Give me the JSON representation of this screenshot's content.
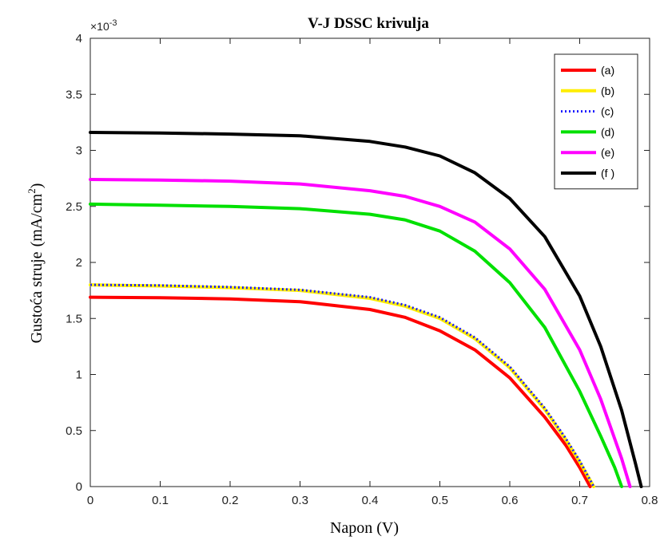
{
  "chart_data": {
    "type": "line",
    "title": "V-J DSSC krivulja",
    "xlabel": "Napon (V)",
    "ylabel": "Gustoća struje",
    "ylabel_unit": "(mA/cm",
    "ylabel_unit_sup": "2",
    "ylabel_unit_close": ")",
    "y_exponent": "-3",
    "y_exponent_base": "×10",
    "xlim": [
      0,
      0.8
    ],
    "ylim": [
      0,
      4
    ],
    "x_ticks": [
      "0",
      "0.1",
      "0.2",
      "0.3",
      "0.4",
      "0.5",
      "0.6",
      "0.7",
      "0.8"
    ],
    "y_ticks": [
      "0",
      "0.5",
      "1",
      "1.5",
      "2",
      "2.5",
      "3",
      "3.5",
      "4"
    ],
    "x_tick_values": [
      0,
      0.1,
      0.2,
      0.3,
      0.4,
      0.5,
      0.6,
      0.7,
      0.8
    ],
    "y_tick_values": [
      0,
      0.5,
      1,
      1.5,
      2,
      2.5,
      3,
      3.5,
      4
    ],
    "grid": false,
    "legend_position": "top-right",
    "series": [
      {
        "name": "(a)",
        "color": "#ff0000",
        "style": "solid",
        "x": [
          0,
          0.1,
          0.2,
          0.3,
          0.4,
          0.45,
          0.5,
          0.55,
          0.6,
          0.65,
          0.68,
          0.7,
          0.715
        ],
        "y": [
          1.69,
          1.685,
          1.675,
          1.65,
          1.58,
          1.51,
          1.39,
          1.22,
          0.97,
          0.62,
          0.37,
          0.17,
          0
        ]
      },
      {
        "name": "(b)",
        "color": "#ffee00",
        "style": "solid",
        "x": [
          0,
          0.1,
          0.2,
          0.3,
          0.4,
          0.45,
          0.5,
          0.55,
          0.6,
          0.65,
          0.68,
          0.7,
          0.72
        ],
        "y": [
          1.8,
          1.79,
          1.775,
          1.75,
          1.68,
          1.61,
          1.5,
          1.32,
          1.06,
          0.69,
          0.42,
          0.22,
          0
        ]
      },
      {
        "name": "(c)",
        "color": "#1a1aff",
        "style": "dotted",
        "x": [
          0,
          0.1,
          0.2,
          0.3,
          0.4,
          0.45,
          0.5,
          0.55,
          0.6,
          0.65,
          0.68,
          0.7,
          0.72
        ],
        "y": [
          1.8,
          1.795,
          1.78,
          1.755,
          1.69,
          1.62,
          1.51,
          1.33,
          1.07,
          0.7,
          0.43,
          0.23,
          0
        ]
      },
      {
        "name": "(d)",
        "color": "#00e000",
        "style": "solid",
        "x": [
          0,
          0.1,
          0.2,
          0.3,
          0.4,
          0.45,
          0.5,
          0.55,
          0.6,
          0.65,
          0.7,
          0.73,
          0.75,
          0.76
        ],
        "y": [
          2.52,
          2.51,
          2.5,
          2.48,
          2.43,
          2.38,
          2.28,
          2.1,
          1.82,
          1.42,
          0.85,
          0.45,
          0.17,
          0
        ]
      },
      {
        "name": "(e)",
        "color": "#ff00ff",
        "style": "solid",
        "x": [
          0,
          0.1,
          0.2,
          0.3,
          0.4,
          0.45,
          0.5,
          0.55,
          0.6,
          0.65,
          0.7,
          0.73,
          0.76,
          0.772
        ],
        "y": [
          2.74,
          2.735,
          2.725,
          2.7,
          2.64,
          2.59,
          2.5,
          2.36,
          2.12,
          1.76,
          1.22,
          0.78,
          0.25,
          0
        ]
      },
      {
        "name": "(f )",
        "color": "#000000",
        "style": "solid",
        "x": [
          0,
          0.1,
          0.2,
          0.3,
          0.4,
          0.45,
          0.5,
          0.55,
          0.6,
          0.65,
          0.7,
          0.73,
          0.76,
          0.78,
          0.788
        ],
        "y": [
          3.16,
          3.155,
          3.145,
          3.13,
          3.08,
          3.03,
          2.95,
          2.8,
          2.57,
          2.23,
          1.7,
          1.25,
          0.68,
          0.2,
          0
        ]
      }
    ]
  }
}
